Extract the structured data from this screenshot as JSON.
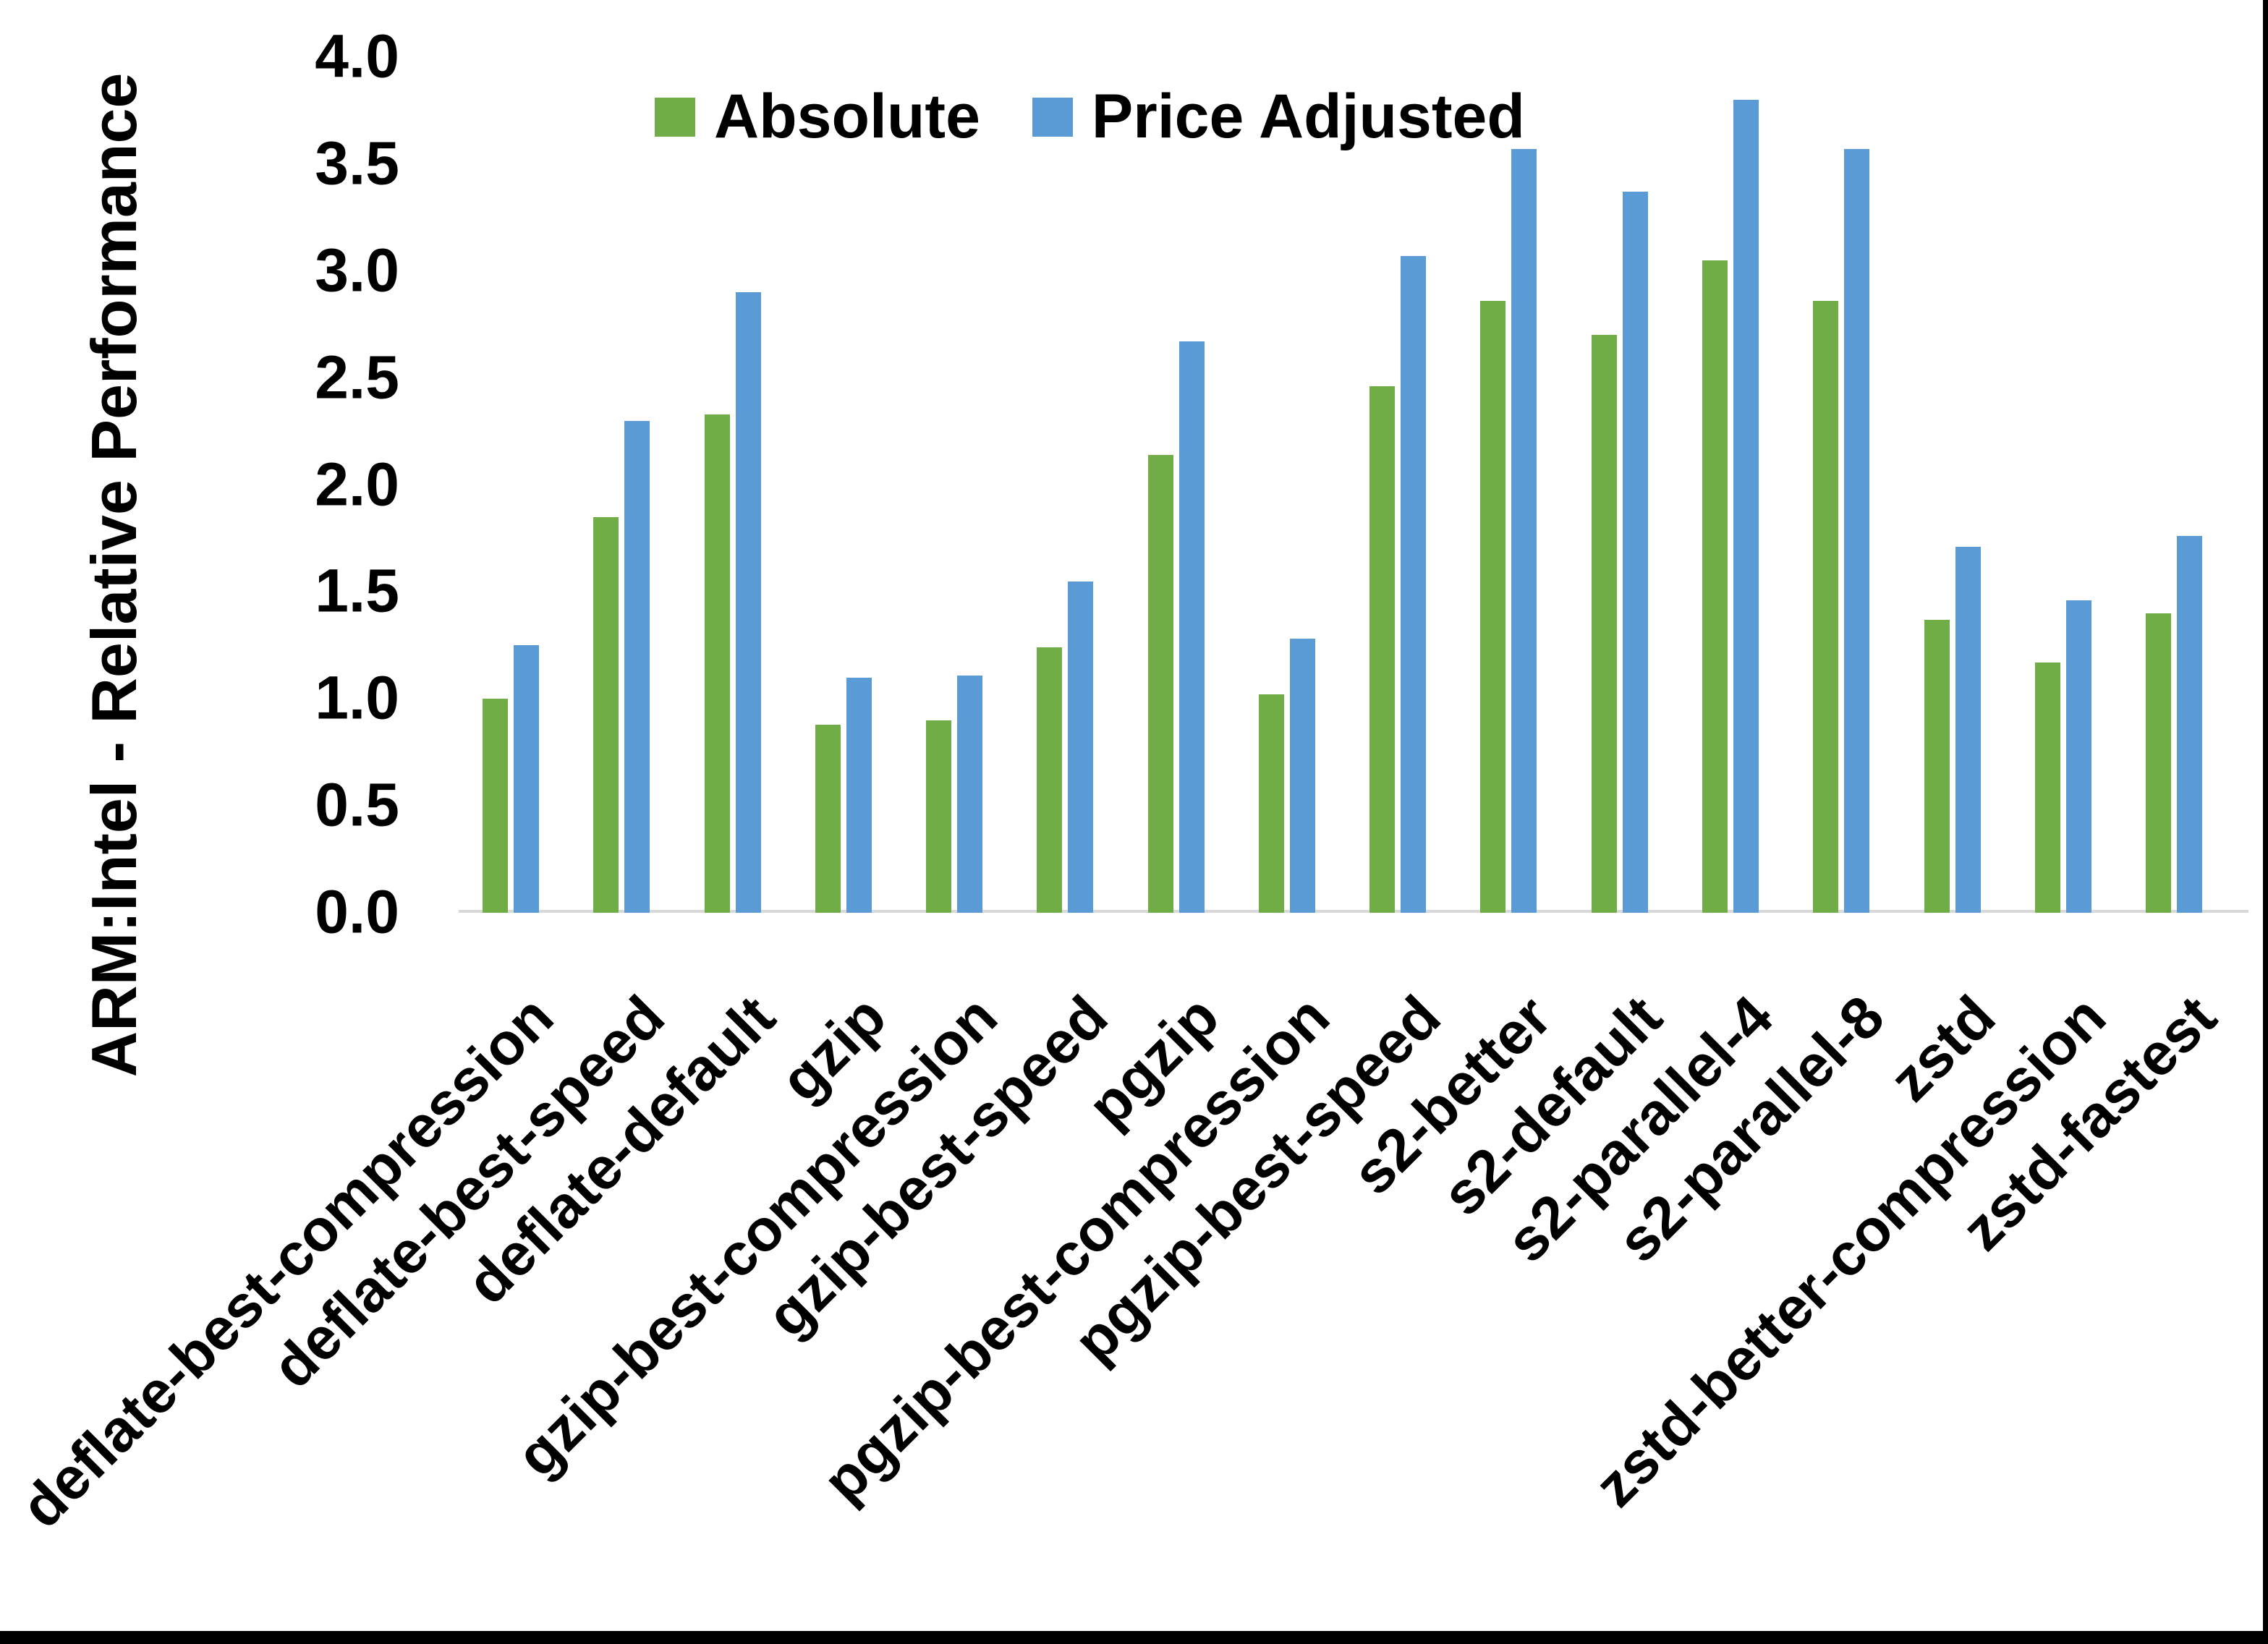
{
  "chart_data": {
    "type": "bar",
    "title": "",
    "xlabel": "",
    "ylabel": "ARM:Intel - Relative Performance",
    "ylim": [
      0.0,
      4.0
    ],
    "ytick_labels": [
      "4.0",
      "3.5",
      "3.0",
      "2.5",
      "2.0",
      "1.5",
      "1.0",
      "0.5",
      "0.0"
    ],
    "grid": false,
    "legend_position": "top-center",
    "categories": [
      "deflate-best-compression",
      "deflate-best-speed",
      "deflate-default",
      "gzip",
      "gzip-best-compression",
      "gzip-best-speed",
      "pgzip",
      "pgzip-best-compression",
      "pgzip-best-speed",
      "s2-better",
      "s2-default",
      "s2-parallel-4",
      "s2-parallel-8",
      "zstd",
      "zstd-better-compression",
      "zstd-fastest"
    ],
    "series": [
      {
        "name": "Absolute",
        "color": "#70AD47",
        "values": [
          1.0,
          1.85,
          2.33,
          0.88,
          0.9,
          1.24,
          2.14,
          1.02,
          2.46,
          2.86,
          2.7,
          3.05,
          2.86,
          1.37,
          1.17,
          1.4
        ]
      },
      {
        "name": "Price Adjusted",
        "color": "#5B9BD5",
        "values": [
          1.25,
          2.3,
          2.9,
          1.1,
          1.11,
          1.55,
          2.67,
          1.28,
          3.07,
          3.57,
          3.37,
          3.8,
          3.57,
          1.71,
          1.46,
          1.76
        ]
      }
    ]
  },
  "colors": {
    "axis_line": "#D9D9D9",
    "text": "#000000",
    "screenshot_border": "#000000",
    "background": "#FFFFFF"
  }
}
